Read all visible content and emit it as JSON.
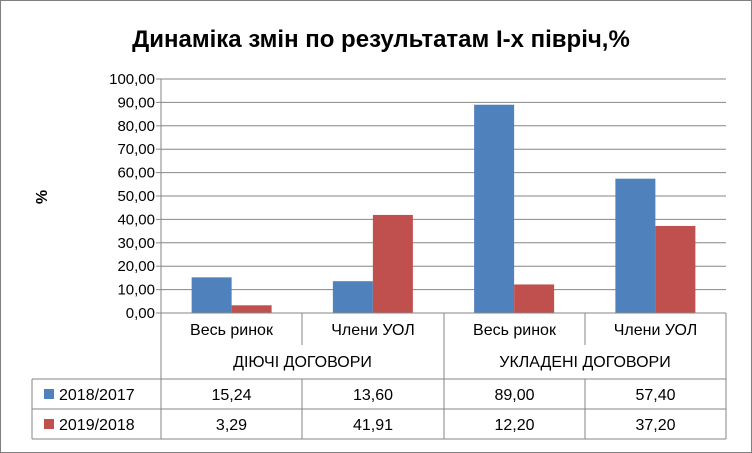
{
  "chart_data": {
    "type": "bar",
    "title": "Динаміка змін по результатам І-х півріч,%",
    "ylabel": "%",
    "xlabel": "",
    "ylim": [
      0,
      100
    ],
    "ytick_labels": [
      "0,00",
      "10,00",
      "20,00",
      "30,00",
      "40,00",
      "50,00",
      "60,00",
      "70,00",
      "80,00",
      "90,00",
      "100,00"
    ],
    "categories": [
      "Весь ринок",
      "Члени УОЛ",
      "Весь ринок",
      "Члени УОЛ"
    ],
    "groups": [
      "ДІЮЧІ ДОГОВОРИ",
      "УКЛАДЕНІ ДОГОВОРИ"
    ],
    "series": [
      {
        "name": "2018/2017",
        "color": "#4f81bd",
        "values": [
          15.24,
          13.6,
          89.0,
          57.4
        ],
        "labels": [
          "15,24",
          "13,60",
          "89,00",
          "57,40"
        ]
      },
      {
        "name": "2019/2018",
        "color": "#c0504d",
        "values": [
          3.29,
          41.91,
          12.2,
          37.2
        ],
        "labels": [
          "3,29",
          "41,91",
          "12,20",
          "37,20"
        ]
      }
    ],
    "grid": true,
    "legend": "data-table"
  }
}
